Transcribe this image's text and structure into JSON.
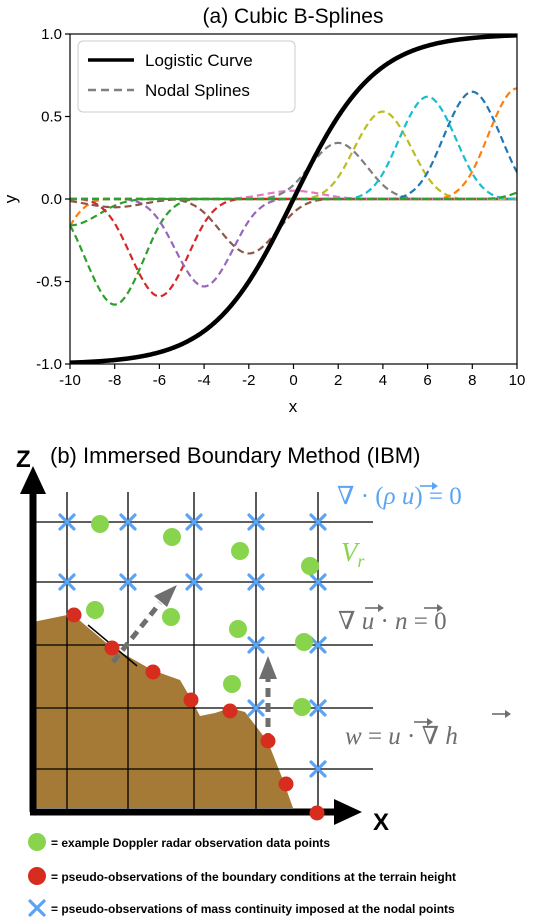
{
  "panel_a": {
    "title": "(a) Cubic B-Splines",
    "xlabel": "x",
    "ylabel": "y",
    "legend": {
      "placement": "top-left",
      "items": [
        {
          "label": "Logistic Curve",
          "color": "#000000",
          "style": "solid"
        },
        {
          "label": "Nodal Splines",
          "color": "#808080",
          "style": "dashed"
        }
      ]
    }
  },
  "chart_data": {
    "type": "line",
    "title": "(a) Cubic B-Splines",
    "xlabel": "x",
    "ylabel": "y",
    "xlim": [
      -10,
      10
    ],
    "ylim": [
      -1.0,
      1.0
    ],
    "xticks": [
      "-10",
      "-8",
      "-6",
      "-4",
      "-2",
      "0",
      "2",
      "4",
      "6",
      "8",
      "10"
    ],
    "yticks": [
      "1.0",
      "0.5",
      "0.0",
      "-0.5",
      "-1.0"
    ],
    "grid": false,
    "legend_placement": "top-left",
    "logistic": {
      "name": "Logistic Curve",
      "color": "#000000",
      "steepness": 0.55
    },
    "splines": {
      "name": "Nodal Splines",
      "half_width": 4,
      "items": [
        {
          "center": -12,
          "amplitude": -0.66,
          "color": "#ff7f0e"
        },
        {
          "center": -10,
          "amplitude": -0.16,
          "color": "#2ca02c"
        },
        {
          "center": -8,
          "amplitude": -0.64,
          "color": "#2ca02c"
        },
        {
          "center": -6,
          "amplitude": -0.59,
          "color": "#d62728"
        },
        {
          "center": -4,
          "amplitude": -0.53,
          "color": "#9467bd"
        },
        {
          "center": -8,
          "amplitude": -0.05,
          "color": "#8c564b"
        },
        {
          "center": -2,
          "amplitude": -0.33,
          "color": "#8c564b"
        },
        {
          "center": 0,
          "amplitude": 0.05,
          "color": "#e377c2"
        },
        {
          "center": 2,
          "amplitude": 0.34,
          "color": "#7f7f7f"
        },
        {
          "center": 4,
          "amplitude": 0.53,
          "color": "#bcbd22"
        },
        {
          "center": 6,
          "amplitude": 0.62,
          "color": "#17becf"
        },
        {
          "center": 8,
          "amplitude": 0.65,
          "color": "#1f77b4"
        },
        {
          "center": 10,
          "amplitude": 0.67,
          "color": "#ff7f0e"
        },
        {
          "center": 12,
          "amplitude": 0.16,
          "color": "#2ca02c"
        }
      ]
    }
  },
  "panel_b": {
    "title": "(b) Immersed Boundary Method (IBM)",
    "z_axis": "Z",
    "x_axis": "X",
    "eq_continuity": "∇ · (ρu⃗) = 0",
    "eq_vr": "V_r",
    "eq_grad": "∇u⃗ · n⃗ = 0",
    "eq_w": "w = u⃗ · ∇h⃗",
    "colors": {
      "doppler": "#88d44c",
      "pseudo_boundary": "#d62d1e",
      "pseudo_mass": "#5ba3f5",
      "terrain": "#a57a37",
      "arrow": "#6e6e6e",
      "eq_blue": "#5ba3f5",
      "eq_green": "#88d44c",
      "eq_gray": "#6e6e6e"
    },
    "legend": [
      {
        "marker": "green-circle",
        "text": "= example Doppler radar observation data points"
      },
      {
        "marker": "red-circle",
        "text": "= pseudo-observations of the boundary conditions at the terrain height"
      },
      {
        "marker": "blue-cross",
        "text": "= pseudo-observations of mass continuity imposed at the nodal points"
      }
    ]
  }
}
